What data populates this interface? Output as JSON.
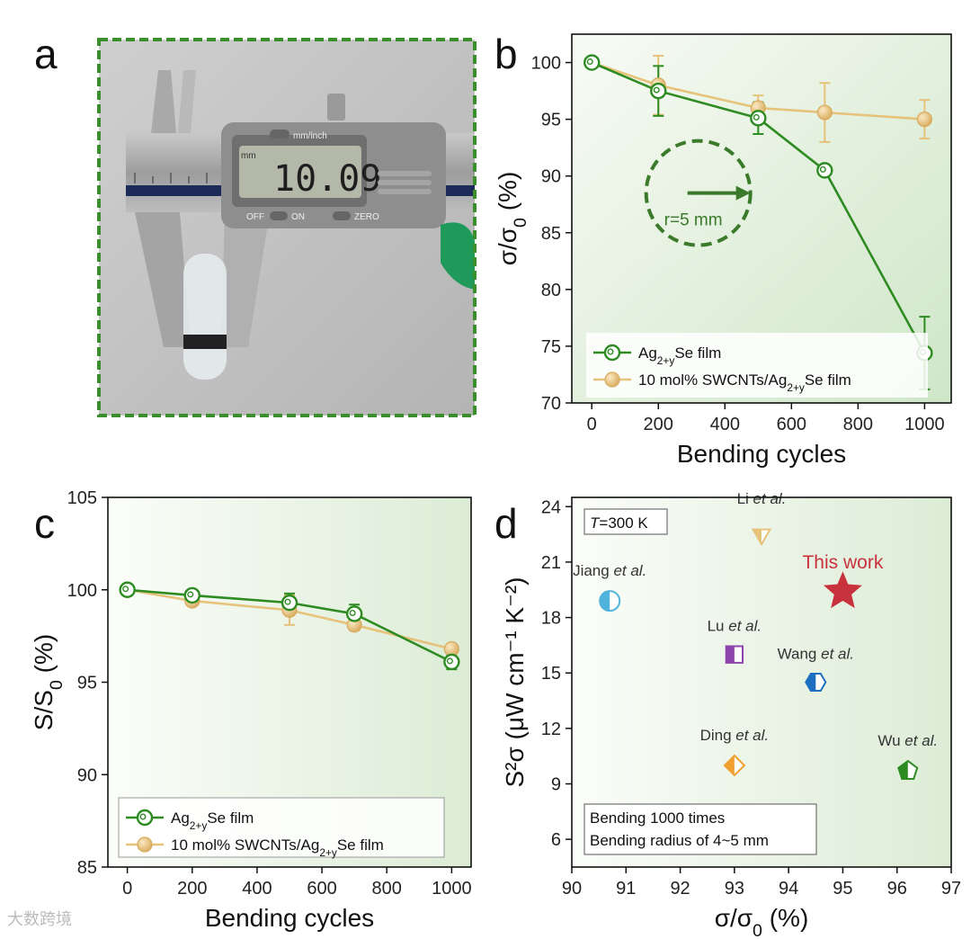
{
  "panels": {
    "a": "a",
    "b": "b",
    "c": "c",
    "d": "d"
  },
  "photo": {
    "display": "10.09",
    "unit_button": "mm/inch",
    "off": "OFF",
    "on": "ON",
    "zero": "ZERO",
    "mm": "mm"
  },
  "watermark": "大数跨境",
  "colors": {
    "green": "#2e8b22",
    "gold": "#e6c27a",
    "panel_bg_light": "#f8fbf5",
    "panel_bg_dark": "#cfe6c8"
  },
  "chart_data": [
    {
      "id": "b",
      "type": "line",
      "xlabel": "Bending cycles",
      "ylabel_main": "σ/σ",
      "ylabel_sub": "0",
      "ylabel_tail": " (%)",
      "xlim": [
        -60,
        1080
      ],
      "ylim": [
        70,
        102.5
      ],
      "xticks": [
        0,
        200,
        400,
        600,
        800,
        1000
      ],
      "yticks": [
        70,
        75,
        80,
        85,
        90,
        95,
        100
      ],
      "annotation": "r=5 mm",
      "series": [
        {
          "name_main": "Ag",
          "name_sub": "2+y",
          "name_tail": "Se film",
          "marker": "open",
          "x": [
            0,
            200,
            500,
            700,
            1000
          ],
          "y": [
            100,
            97.5,
            95.1,
            90.5,
            74.4
          ],
          "err": [
            0,
            2.2,
            1.4,
            0,
            3.2
          ]
        },
        {
          "name_main": "10 mol% SWCNTs/Ag",
          "name_sub": "2+y",
          "name_tail": "Se film",
          "marker": "filled",
          "x": [
            0,
            200,
            500,
            700,
            1000
          ],
          "y": [
            100,
            98,
            96,
            95.6,
            95
          ],
          "err": [
            0,
            2.6,
            1.1,
            2.6,
            1.7
          ]
        }
      ],
      "legend": "bottom-right"
    },
    {
      "id": "c",
      "type": "line",
      "xlabel": "Bending cycles",
      "ylabel_main": "S/S",
      "ylabel_sub": "0",
      "ylabel_tail": " (%)",
      "xlim": [
        -60,
        1060
      ],
      "ylim": [
        85,
        105
      ],
      "xticks": [
        0,
        200,
        400,
        600,
        800,
        1000
      ],
      "yticks": [
        85,
        90,
        95,
        100,
        105
      ],
      "series": [
        {
          "name_main": "Ag",
          "name_sub": "2+y",
          "name_tail": "Se film",
          "marker": "open",
          "x": [
            0,
            200,
            500,
            700,
            1000
          ],
          "y": [
            100,
            99.7,
            99.3,
            98.7,
            96.1
          ],
          "err": [
            0,
            0.3,
            0.5,
            0.5,
            0.4
          ]
        },
        {
          "name_main": "10 mol% SWCNTs/Ag",
          "name_sub": "2+y",
          "name_tail": "Se film",
          "marker": "filled",
          "x": [
            0,
            200,
            500,
            700,
            1000
          ],
          "y": [
            100,
            99.4,
            98.9,
            98.1,
            96.8
          ],
          "err": [
            0,
            0.2,
            0.8,
            0.3,
            0.2
          ]
        }
      ],
      "legend": "bottom-left"
    },
    {
      "id": "d",
      "type": "scatter",
      "xlabel_main": "σ/σ",
      "xlabel_sub": "0",
      "xlabel_tail": " (%)",
      "ylabel": "S²σ (μW cm⁻¹ K⁻²)",
      "xlim": [
        90,
        97
      ],
      "ylim": [
        4.5,
        24.5
      ],
      "xticks": [
        90,
        91,
        92,
        93,
        94,
        95,
        96,
        97
      ],
      "yticks": [
        6,
        9,
        12,
        15,
        18,
        21,
        24
      ],
      "condition": "T=300 K",
      "note_lines": [
        "Bending 1000 times",
        "Bending radius of 4~5 mm"
      ],
      "points": [
        {
          "pre": "Li ",
          "ital": "et al.",
          "x": 93.5,
          "y": 22.5,
          "color": "#e6c27a",
          "shape": "triangle-down"
        },
        {
          "pre": "This work",
          "ital": "",
          "x": 95,
          "y": 19.4,
          "color": "#c8323c",
          "shape": "star"
        },
        {
          "pre": "Jiang ",
          "ital": "et al.",
          "x": 90.7,
          "y": 18.9,
          "color": "#4fb3dc",
          "shape": "circle"
        },
        {
          "pre": "Lu ",
          "ital": "et al.",
          "x": 93,
          "y": 16,
          "color": "#8e44ad",
          "shape": "square"
        },
        {
          "pre": "Wang ",
          "ital": "et al.",
          "x": 94.5,
          "y": 14.5,
          "color": "#1f6fc0",
          "shape": "hexagon"
        },
        {
          "pre": "Ding ",
          "ital": "et al.",
          "x": 93,
          "y": 10,
          "color": "#f0a030",
          "shape": "diamond"
        },
        {
          "pre": "Wu ",
          "ital": "et al.",
          "x": 96.2,
          "y": 9.7,
          "color": "#2e8b22",
          "shape": "pentagon"
        }
      ]
    }
  ]
}
